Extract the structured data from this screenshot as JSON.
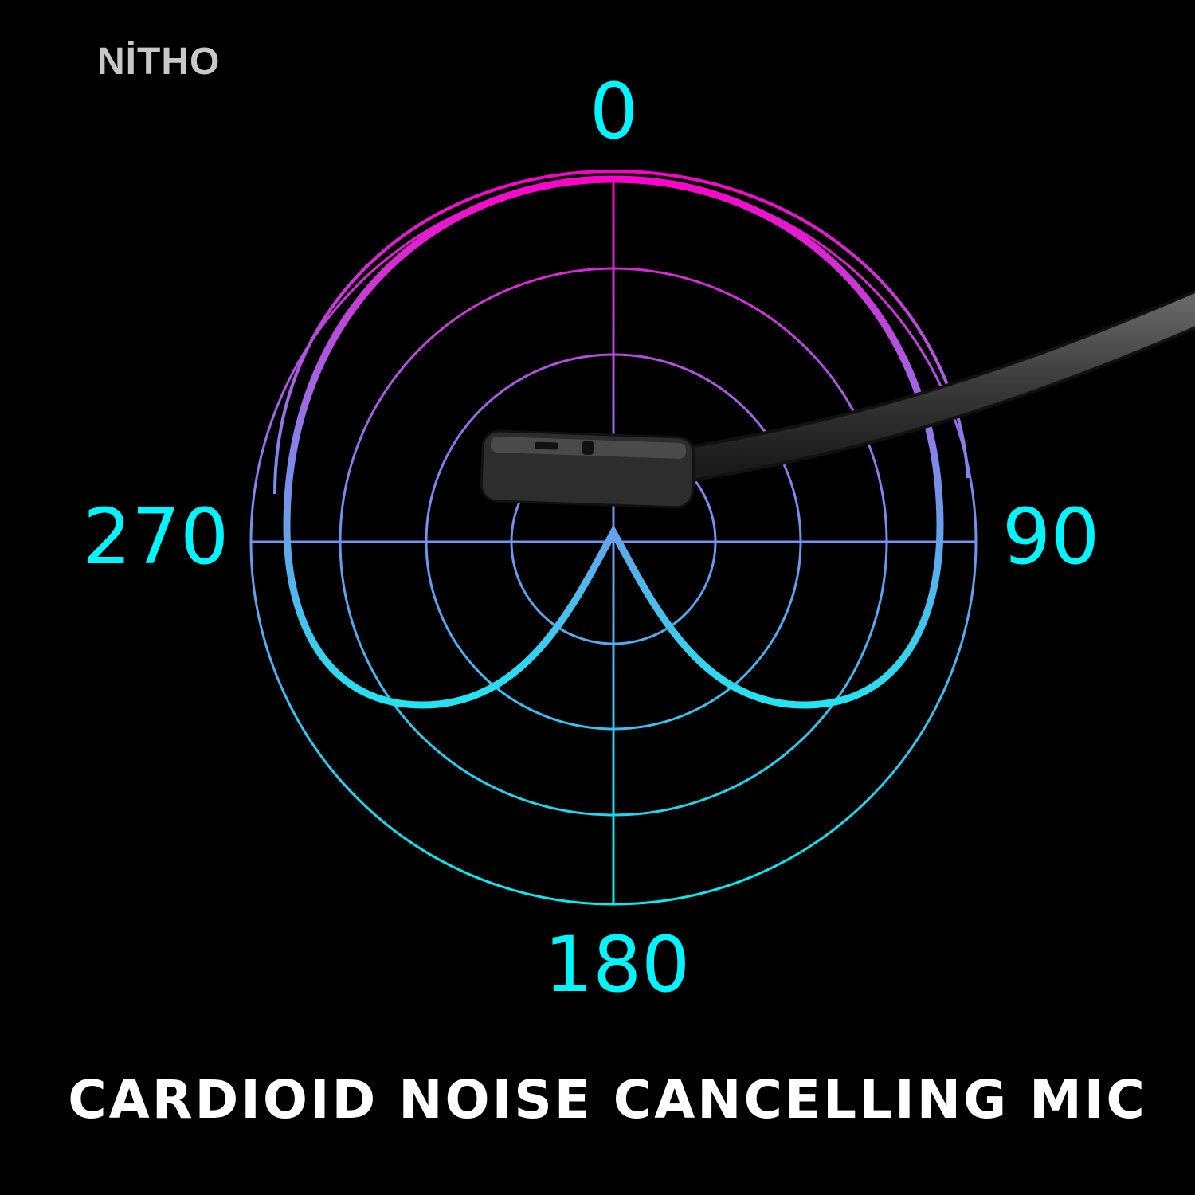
{
  "brand": {
    "logo": "NİTHO"
  },
  "diagram": {
    "type": "polar pickup pattern",
    "angle_labels": {
      "top": "0",
      "right": "90",
      "bottom": "180",
      "left": "270"
    },
    "colors": {
      "top": "#ff00c8",
      "bottom": "#00f0f0",
      "labels": "#00f6ff"
    },
    "image": "microphone-boom"
  },
  "caption": "CARDIOID NOISE CANCELLING MIC"
}
